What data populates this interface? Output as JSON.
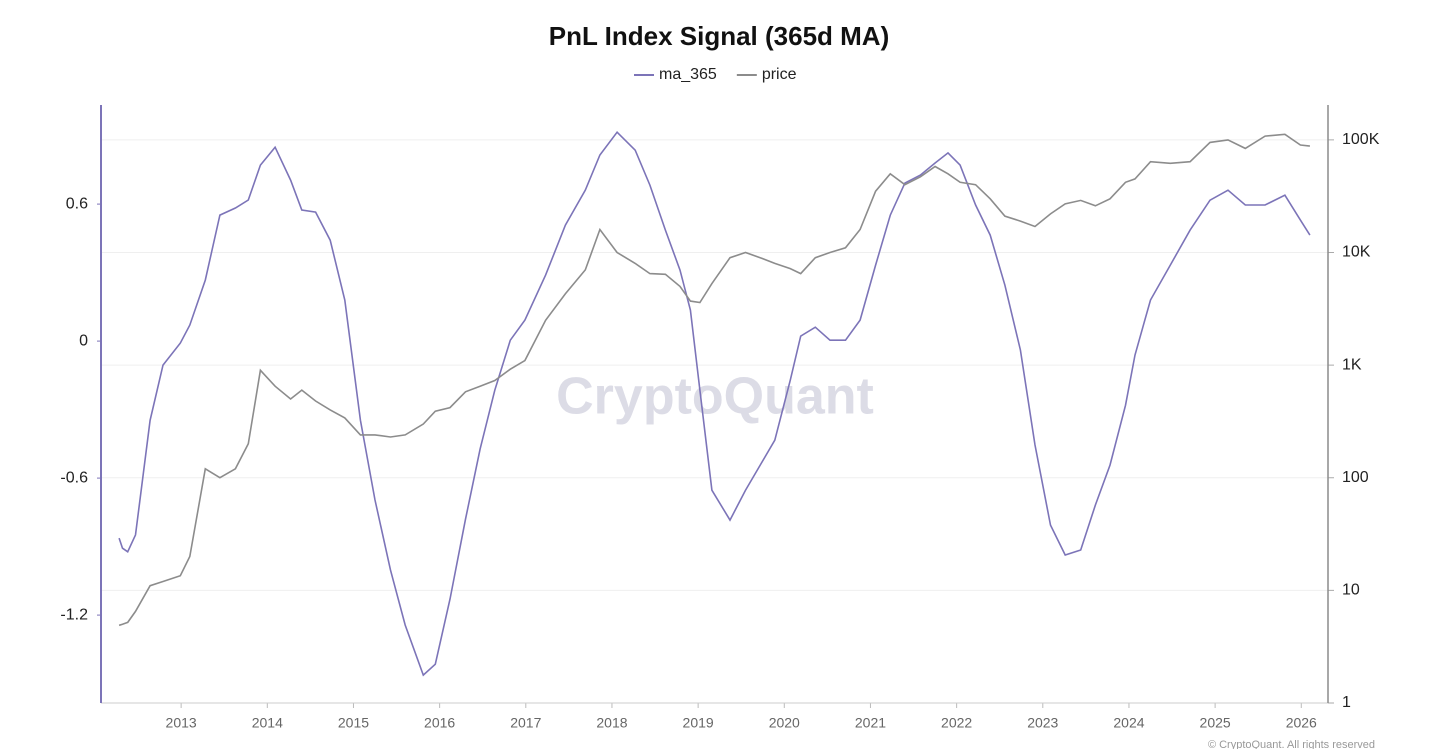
{
  "chart_data": {
    "type": "line",
    "title": "PnL Index Signal (365d MA)",
    "watermark": "CryptoQuant",
    "footer": "© CryptoQuant. All rights reserved",
    "x": [
      2012.28,
      2012.32,
      2012.38,
      2012.47,
      2012.64,
      2012.79,
      2012.99,
      2013.1,
      2013.28,
      2013.45,
      2013.63,
      2013.78,
      2013.92,
      2014.09,
      2014.27,
      2014.4,
      2014.56,
      2014.73,
      2014.9,
      2015.08,
      2015.25,
      2015.43,
      2015.6,
      2015.81,
      2015.95,
      2016.12,
      2016.3,
      2016.47,
      2016.64,
      2016.82,
      2016.99,
      2017.23,
      2017.46,
      2017.69,
      2017.86,
      2018.06,
      2018.27,
      2018.44,
      2018.62,
      2018.79,
      2018.91,
      2019.02,
      2019.16,
      2019.37,
      2019.55,
      2019.72,
      2019.89,
      2020.07,
      2020.19,
      2020.36,
      2020.53,
      2020.71,
      2020.88,
      2021.06,
      2021.23,
      2021.4,
      2021.58,
      2021.75,
      2021.9,
      2022.04,
      2022.22,
      2022.39,
      2022.56,
      2022.74,
      2022.91,
      2023.09,
      2023.26,
      2023.44,
      2023.61,
      2023.78,
      2023.96,
      2024.07,
      2024.25,
      2024.48,
      2024.71,
      2024.94,
      2025.15,
      2025.35,
      2025.58,
      2025.81,
      2025.99,
      2026.1
    ],
    "series": [
      {
        "name": "ma_365",
        "color": "#7c74b8",
        "axis": "y",
        "values": [
          -0.863,
          -0.907,
          -0.923,
          -0.849,
          -0.347,
          -0.105,
          -0.009,
          0.07,
          0.267,
          0.552,
          0.583,
          0.618,
          0.771,
          0.849,
          0.705,
          0.574,
          0.565,
          0.442,
          0.18,
          -0.346,
          -0.696,
          -1.003,
          -1.244,
          -1.463,
          -1.415,
          -1.13,
          -0.78,
          -0.473,
          -0.215,
          0.004,
          0.092,
          0.289,
          0.508,
          0.661,
          0.815,
          0.915,
          0.836,
          0.683,
          0.486,
          0.311,
          0.136,
          -0.215,
          -0.653,
          -0.784,
          -0.653,
          -0.543,
          -0.434,
          -0.171,
          0.022,
          0.061,
          0.004,
          0.004,
          0.092,
          0.333,
          0.552,
          0.692,
          0.727,
          0.78,
          0.824,
          0.771,
          0.596,
          0.464,
          0.245,
          -0.039,
          -0.455,
          -0.806,
          -0.937,
          -0.915,
          -0.718,
          -0.543,
          -0.281,
          -0.061,
          0.18,
          0.333,
          0.486,
          0.617,
          0.661,
          0.596,
          0.596,
          0.639,
          0.53,
          0.464
        ]
      },
      {
        "name": "price",
        "color": "#8c8c8c",
        "axis": "y2",
        "values": [
          4.9,
          5,
          5.2,
          6.5,
          11,
          12,
          13.5,
          20,
          120,
          100,
          120,
          200,
          900,
          650,
          500,
          600,
          480,
          400,
          340,
          240,
          240,
          230,
          240,
          300,
          390,
          420,
          580,
          650,
          730,
          920,
          1100,
          2500,
          4300,
          7000,
          16000,
          10000,
          8000,
          6500,
          6400,
          5000,
          3700,
          3600,
          5300,
          9000,
          10000,
          9000,
          8000,
          7200,
          6500,
          9000,
          10000,
          11000,
          16000,
          35000,
          50000,
          40000,
          47000,
          58000,
          50000,
          42000,
          40000,
          30000,
          21000,
          19000,
          17000,
          22000,
          27000,
          29000,
          26000,
          30000,
          42000,
          45000,
          64000,
          62000,
          64000,
          95000,
          100000,
          84000,
          108000,
          112000,
          90000,
          88000
        ]
      }
    ],
    "xlim": [
      2012.07,
      2026.31
    ],
    "xticks": [
      2013,
      2014,
      2015,
      2016,
      2017,
      2018,
      2019,
      2020,
      2021,
      2022,
      2023,
      2024,
      2025,
      2026
    ],
    "ylim": [
      -1.585,
      1.034
    ],
    "yticks": [
      0.6,
      0,
      -0.6,
      -1.2
    ],
    "y2lim": [
      1,
      204000
    ],
    "y2log": true,
    "y2ticks": [
      {
        "value": 100000,
        "label": "100K"
      },
      {
        "value": 10000,
        "label": "10K"
      },
      {
        "value": 1000,
        "label": "1K"
      },
      100,
      10,
      1
    ],
    "grid": true
  }
}
